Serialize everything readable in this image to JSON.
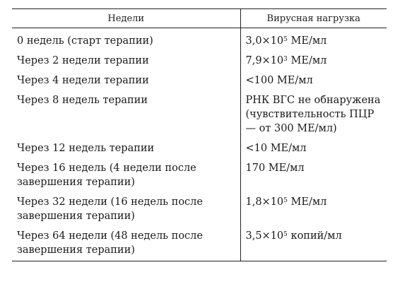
{
  "table": {
    "headers": {
      "weeks": "Недели",
      "viral_load": "Вирусная нагрузка"
    },
    "rows": [
      {
        "week": "0 недель (старт терапии)",
        "load_pre": "3,0×10",
        "load_exp": "5",
        "load_post": " МЕ/мл"
      },
      {
        "week": "Через 2 недели терапии",
        "load_pre": "7,9×10",
        "load_exp": "3",
        "load_post": " МЕ/мл"
      },
      {
        "week": "Через 4 недели терапии",
        "load_pre": "<100 МЕ/мл",
        "load_exp": "",
        "load_post": ""
      },
      {
        "week": "Через 8 недель терапии",
        "load_pre": "РНК ВГС не обнаружена (чувствительность ПЦР — от 300 МЕ/мл)",
        "load_exp": "",
        "load_post": ""
      },
      {
        "week": "Через 12 недель терапии",
        "load_pre": "<10 МЕ/мл",
        "load_exp": "",
        "load_post": ""
      },
      {
        "week": "Через 16 недель (4 недели после завершения терапии)",
        "load_pre": "170 МЕ/мл",
        "load_exp": "",
        "load_post": ""
      },
      {
        "week": "Через 32 недели (16 недель после завершения терапии)",
        "load_pre": "1,8×10",
        "load_exp": "5",
        "load_post": " МЕ/мл"
      },
      {
        "week": "Через 64 недели (48 недель после завершения терапии)",
        "load_pre": "3,5×10",
        "load_exp": "5",
        "load_post": " копий/мл"
      }
    ]
  }
}
